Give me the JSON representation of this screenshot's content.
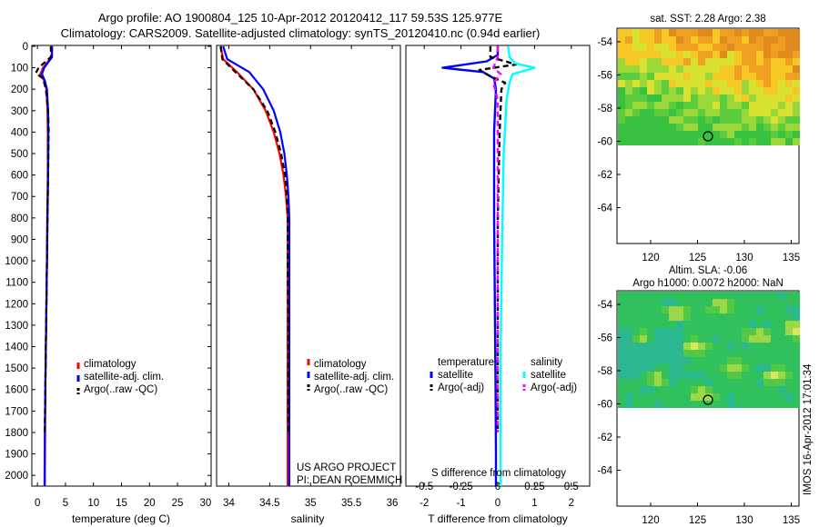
{
  "header": {
    "line1": "Argo profile: AO 1900804_125 10-Apr-2012 20120412_117 59.53S 125.977E",
    "line2": "Climatology: CARS2009. Satellite-adjusted climatology: synTS_20120410.nc (0.94d earlier)"
  },
  "colors": {
    "climatology": "#ff0000",
    "satellite": "#0000ff",
    "argo": "#000000",
    "satellite_salinity": "#00ffff",
    "argo_salinity": "#ff00ff"
  },
  "depth_axis": {
    "ticks": [
      0,
      100,
      200,
      300,
      400,
      500,
      600,
      700,
      800,
      900,
      1000,
      1100,
      1200,
      1300,
      1400,
      1500,
      1600,
      1700,
      1800,
      1900,
      2000
    ]
  },
  "panels": {
    "temperature": {
      "xlabel": "temperature (deg C)",
      "xticks": [
        "0",
        "5",
        "10",
        "15",
        "20",
        "25",
        "30"
      ],
      "legend": [
        "climatology",
        "satellite-adj. clim.",
        "Argo(..raw -QC)"
      ]
    },
    "salinity": {
      "xlabel": "salinity",
      "xticks": [
        "34",
        "34.5",
        "35",
        "35.5",
        "36"
      ],
      "legend": [
        "climatology",
        "satellite-adj. clim.",
        "Argo(..raw -QC)"
      ],
      "credit_line1": "US ARGO PROJECT",
      "credit_line2": "PI: DEAN ROEMMICH"
    },
    "difference": {
      "xlabel": "T difference from climatology",
      "xticks": [
        "-2",
        "-1",
        "0",
        "1",
        "2"
      ],
      "top_label": "S difference from climatology",
      "top_ticks": [
        "-0.5",
        "-0.25",
        "0",
        "0.25",
        "0.5"
      ],
      "legend_temp_title": "temperature",
      "legend_sal_title": "salinity",
      "legend_temp": [
        "satellite",
        "Argo(-adj)"
      ],
      "legend_sal": [
        "satellite",
        "Argo(-adj)"
      ]
    }
  },
  "maps": {
    "sst_title": "sat. SST: 2.28 Argo: 2.38",
    "sla_title1": "Altim. SLA: -0.06",
    "sla_title2": "Argo h1000: 0.0072 h2000: NaN",
    "yticks": [
      "-54",
      "-56",
      "-58",
      "-60",
      "-62",
      "-64"
    ],
    "xticks": [
      "120",
      "125",
      "130",
      "135"
    ]
  },
  "footer": {
    "stamp": "IMOS 16-Apr-2012 17:01:34"
  },
  "chart_data": [
    {
      "type": "line",
      "title": "",
      "xlabel": "temperature (deg C)",
      "ylabel": "",
      "xlim": [
        -1,
        31
      ],
      "ylim": [
        2050,
        0
      ],
      "series": [
        {
          "name": "climatology",
          "x": [
            2.6,
            2.5,
            1.0,
            0.5,
            1.2,
            1.6,
            1.8,
            1.85,
            1.85,
            1.75,
            1.7,
            1.6,
            1.5,
            1.4,
            1.3,
            1.25
          ],
          "y": [
            0,
            50,
            100,
            130,
            160,
            200,
            300,
            400,
            600,
            800,
            1000,
            1200,
            1400,
            1600,
            1800,
            2050
          ]
        },
        {
          "name": "satellite-adj. clim.",
          "x": [
            2.6,
            2.6,
            1.2,
            0.8,
            1.3,
            1.7,
            1.9,
            1.95,
            1.9,
            1.8,
            1.7,
            1.6,
            1.5,
            1.4,
            1.35,
            1.3
          ],
          "y": [
            0,
            50,
            100,
            130,
            160,
            200,
            300,
            400,
            600,
            800,
            1000,
            1200,
            1400,
            1600,
            1800,
            2050
          ]
        },
        {
          "name": "Argo(..raw -QC)",
          "x": [
            2.4,
            2.4,
            0.2,
            -0.3,
            1.0,
            1.5,
            1.9,
            2.0,
            1.9,
            1.8,
            1.7,
            1.6,
            1.5,
            1.4,
            1.3
          ],
          "y": [
            0,
            50,
            100,
            125,
            150,
            200,
            300,
            400,
            600,
            800,
            1000,
            1200,
            1400,
            1600,
            1800
          ]
        }
      ]
    },
    {
      "type": "line",
      "title": "",
      "xlabel": "salinity",
      "ylabel": "",
      "xlim": [
        33.85,
        36.1
      ],
      "ylim": [
        2050,
        0
      ],
      "series": [
        {
          "name": "climatology",
          "x": [
            33.9,
            33.93,
            34.1,
            34.3,
            34.45,
            34.55,
            34.62,
            34.67,
            34.7,
            34.72,
            34.72,
            34.72,
            34.72,
            34.72,
            34.72
          ],
          "y": [
            0,
            60,
            120,
            200,
            300,
            400,
            500,
            600,
            700,
            800,
            1000,
            1300,
            1600,
            1900,
            2050
          ]
        },
        {
          "name": "satellite-adj. clim.",
          "x": [
            33.93,
            33.98,
            34.25,
            34.42,
            34.55,
            34.63,
            34.68,
            34.71,
            34.73,
            34.74,
            34.74,
            34.74,
            34.74,
            34.74,
            34.74
          ],
          "y": [
            0,
            60,
            120,
            200,
            300,
            400,
            500,
            600,
            700,
            800,
            1000,
            1300,
            1600,
            1900,
            2050
          ]
        },
        {
          "name": "Argo(..raw -QC)",
          "x": [
            33.9,
            33.92,
            34.08,
            34.3,
            34.47,
            34.57,
            34.64,
            34.69,
            34.71,
            34.72,
            34.72,
            34.73,
            34.73,
            34.73
          ],
          "y": [
            0,
            60,
            120,
            200,
            300,
            400,
            500,
            600,
            700,
            800,
            1000,
            1300,
            1600,
            1800
          ]
        }
      ]
    },
    {
      "type": "line",
      "title": "",
      "xlabel": "T difference from climatology",
      "ylabel": "",
      "xlim": [
        -2.5,
        2.5
      ],
      "ylim": [
        2050,
        0
      ],
      "series": [
        {
          "name": "temperature satellite",
          "x": [
            0,
            0,
            -0.3,
            -1.5,
            -0.4,
            -0.1,
            -0.05,
            -0.1,
            -0.1,
            -0.08,
            -0.06,
            -0.05,
            -0.05
          ],
          "y": [
            0,
            40,
            70,
            100,
            120,
            150,
            200,
            400,
            800,
            1200,
            1600,
            1900,
            2050
          ]
        },
        {
          "name": "temperature Argo(-adj)",
          "x": [
            -0.2,
            -0.2,
            0.5,
            -0.5,
            -0.2,
            0.2,
            0.1,
            0.05,
            0,
            0,
            0,
            0
          ],
          "y": [
            0,
            50,
            85,
            110,
            140,
            170,
            200,
            400,
            800,
            1200,
            1600,
            1800
          ]
        },
        {
          "name": "salinity satellite",
          "x": [
            0.07,
            0.08,
            0.12,
            0.25,
            0.1,
            0.08,
            0.06,
            0.04,
            0.03,
            0.02,
            0.02
          ],
          "y": [
            0,
            50,
            80,
            100,
            130,
            170,
            250,
            500,
            900,
            1400,
            2050
          ]
        },
        {
          "name": "salinity Argo(-adj)",
          "x": [
            0,
            0,
            -0.03,
            0.02,
            -0.03,
            0,
            0,
            0,
            0,
            0
          ],
          "y": [
            0,
            50,
            100,
            130,
            170,
            250,
            500,
            900,
            1400,
            1800
          ]
        }
      ]
    }
  ]
}
